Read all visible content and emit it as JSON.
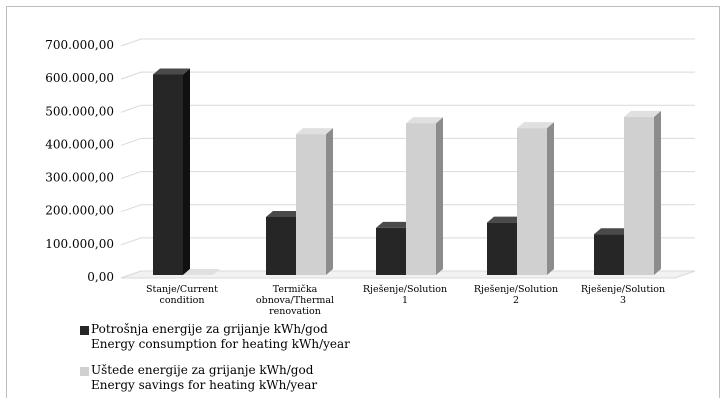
{
  "chart_data": {
    "type": "bar",
    "style": "3d-clustered-column",
    "categories": [
      [
        "Stanje/Current",
        "condition"
      ],
      [
        "Termička",
        "obnova/Thermal",
        "renovation"
      ],
      [
        "Rješenje/Solution",
        "1"
      ],
      [
        "Rješenje/Solution",
        "2"
      ],
      [
        "Rješenje/Solution",
        "3"
      ]
    ],
    "series": [
      {
        "name_line1": "Potrošnja energije za grijanje kWh/god",
        "name_line2": "Energy consumption for heating kWh/year",
        "color": "#262626",
        "values": [
          605000,
          175000,
          142000,
          158000,
          123000
        ]
      },
      {
        "name_line1": "Uštede energije za grijanje kWh/god",
        "name_line2": "Energy savings for heating kWh/year",
        "color": "#d0d0d0",
        "values": [
          0,
          425000,
          458000,
          443000,
          477000
        ]
      }
    ],
    "ylim": [
      0,
      700000
    ],
    "y_ticks": [
      0,
      100000,
      200000,
      300000,
      400000,
      500000,
      600000,
      700000
    ],
    "y_tick_labels": [
      "0,00",
      "100.000,00",
      "200.000,00",
      "300.000,00",
      "400.000,00",
      "500.000,00",
      "600.000,00",
      "700.000,00"
    ],
    "grid": true,
    "legend_position": "bottom-left"
  }
}
